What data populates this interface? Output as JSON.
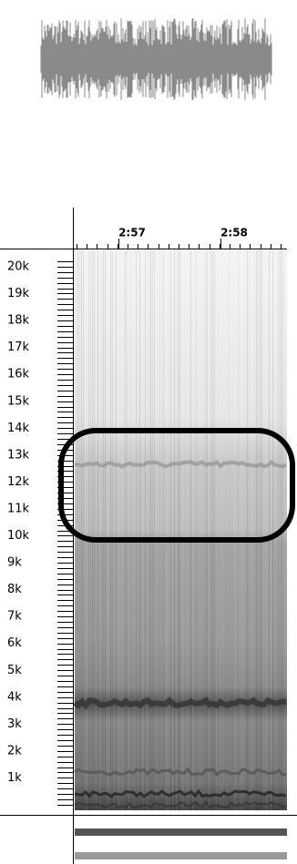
{
  "time_axis": {
    "labels": [
      "2:57",
      "2:58"
    ]
  },
  "frequency_axis": {
    "labels": [
      "20k",
      "19k",
      "18k",
      "17k",
      "16k",
      "15k",
      "14k",
      "13k",
      "12k",
      "11k",
      "10k",
      "9k",
      "8k",
      "7k",
      "6k",
      "5k",
      "4k",
      "3k",
      "2k",
      "1k"
    ]
  }
}
